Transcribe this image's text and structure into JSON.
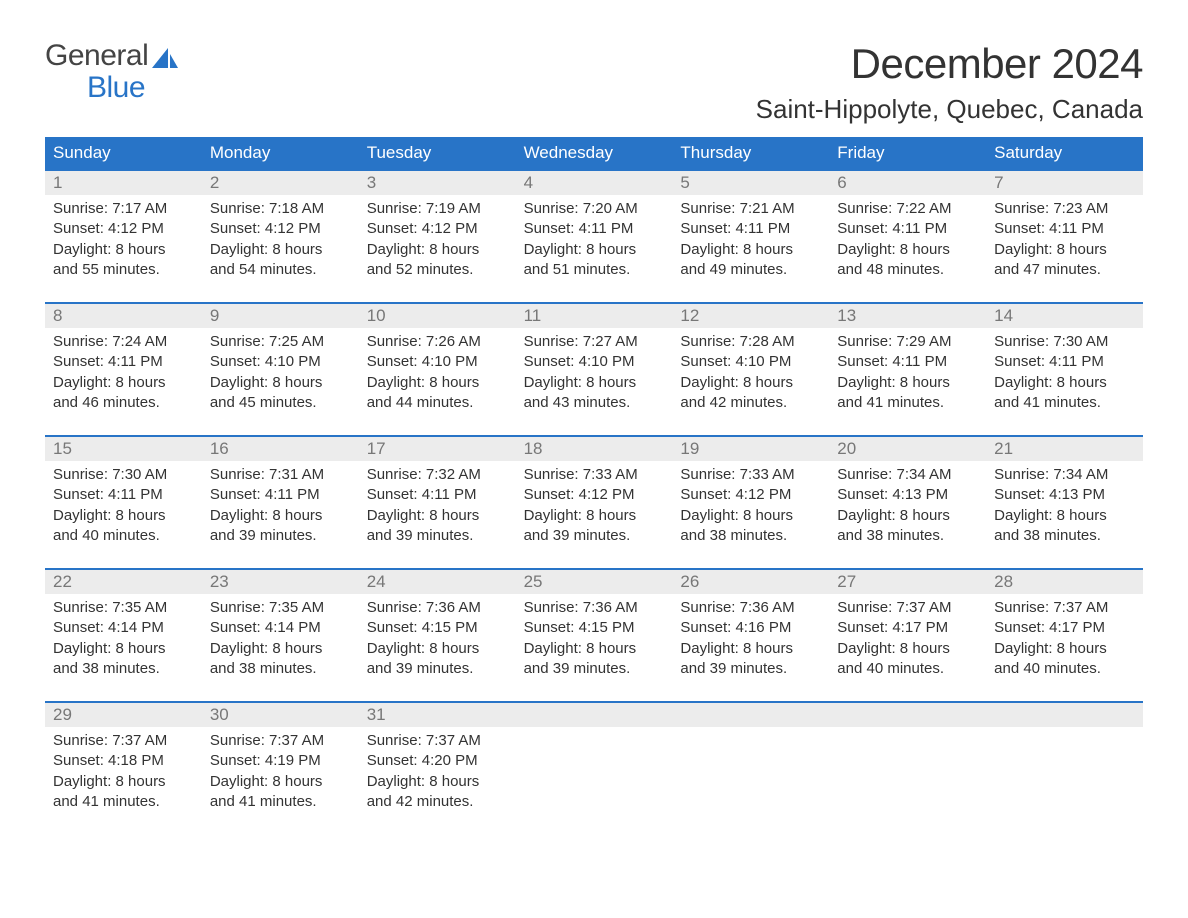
{
  "logo": {
    "word1": "General",
    "word2": "Blue",
    "accent_color": "#2874c7"
  },
  "title": "December 2024",
  "location": "Saint-Hippolyte, Quebec, Canada",
  "header_bg": "#2874c7",
  "band_bg": "#ececec",
  "day_headers": [
    "Sunday",
    "Monday",
    "Tuesday",
    "Wednesday",
    "Thursday",
    "Friday",
    "Saturday"
  ],
  "weeks": [
    [
      {
        "n": "1",
        "sunrise": "7:17 AM",
        "sunset": "4:12 PM",
        "dl1": "Daylight: 8 hours",
        "dl2": "and 55 minutes."
      },
      {
        "n": "2",
        "sunrise": "7:18 AM",
        "sunset": "4:12 PM",
        "dl1": "Daylight: 8 hours",
        "dl2": "and 54 minutes."
      },
      {
        "n": "3",
        "sunrise": "7:19 AM",
        "sunset": "4:12 PM",
        "dl1": "Daylight: 8 hours",
        "dl2": "and 52 minutes."
      },
      {
        "n": "4",
        "sunrise": "7:20 AM",
        "sunset": "4:11 PM",
        "dl1": "Daylight: 8 hours",
        "dl2": "and 51 minutes."
      },
      {
        "n": "5",
        "sunrise": "7:21 AM",
        "sunset": "4:11 PM",
        "dl1": "Daylight: 8 hours",
        "dl2": "and 49 minutes."
      },
      {
        "n": "6",
        "sunrise": "7:22 AM",
        "sunset": "4:11 PM",
        "dl1": "Daylight: 8 hours",
        "dl2": "and 48 minutes."
      },
      {
        "n": "7",
        "sunrise": "7:23 AM",
        "sunset": "4:11 PM",
        "dl1": "Daylight: 8 hours",
        "dl2": "and 47 minutes."
      }
    ],
    [
      {
        "n": "8",
        "sunrise": "7:24 AM",
        "sunset": "4:11 PM",
        "dl1": "Daylight: 8 hours",
        "dl2": "and 46 minutes."
      },
      {
        "n": "9",
        "sunrise": "7:25 AM",
        "sunset": "4:10 PM",
        "dl1": "Daylight: 8 hours",
        "dl2": "and 45 minutes."
      },
      {
        "n": "10",
        "sunrise": "7:26 AM",
        "sunset": "4:10 PM",
        "dl1": "Daylight: 8 hours",
        "dl2": "and 44 minutes."
      },
      {
        "n": "11",
        "sunrise": "7:27 AM",
        "sunset": "4:10 PM",
        "dl1": "Daylight: 8 hours",
        "dl2": "and 43 minutes."
      },
      {
        "n": "12",
        "sunrise": "7:28 AM",
        "sunset": "4:10 PM",
        "dl1": "Daylight: 8 hours",
        "dl2": "and 42 minutes."
      },
      {
        "n": "13",
        "sunrise": "7:29 AM",
        "sunset": "4:11 PM",
        "dl1": "Daylight: 8 hours",
        "dl2": "and 41 minutes."
      },
      {
        "n": "14",
        "sunrise": "7:30 AM",
        "sunset": "4:11 PM",
        "dl1": "Daylight: 8 hours",
        "dl2": "and 41 minutes."
      }
    ],
    [
      {
        "n": "15",
        "sunrise": "7:30 AM",
        "sunset": "4:11 PM",
        "dl1": "Daylight: 8 hours",
        "dl2": "and 40 minutes."
      },
      {
        "n": "16",
        "sunrise": "7:31 AM",
        "sunset": "4:11 PM",
        "dl1": "Daylight: 8 hours",
        "dl2": "and 39 minutes."
      },
      {
        "n": "17",
        "sunrise": "7:32 AM",
        "sunset": "4:11 PM",
        "dl1": "Daylight: 8 hours",
        "dl2": "and 39 minutes."
      },
      {
        "n": "18",
        "sunrise": "7:33 AM",
        "sunset": "4:12 PM",
        "dl1": "Daylight: 8 hours",
        "dl2": "and 39 minutes."
      },
      {
        "n": "19",
        "sunrise": "7:33 AM",
        "sunset": "4:12 PM",
        "dl1": "Daylight: 8 hours",
        "dl2": "and 38 minutes."
      },
      {
        "n": "20",
        "sunrise": "7:34 AM",
        "sunset": "4:13 PM",
        "dl1": "Daylight: 8 hours",
        "dl2": "and 38 minutes."
      },
      {
        "n": "21",
        "sunrise": "7:34 AM",
        "sunset": "4:13 PM",
        "dl1": "Daylight: 8 hours",
        "dl2": "and 38 minutes."
      }
    ],
    [
      {
        "n": "22",
        "sunrise": "7:35 AM",
        "sunset": "4:14 PM",
        "dl1": "Daylight: 8 hours",
        "dl2": "and 38 minutes."
      },
      {
        "n": "23",
        "sunrise": "7:35 AM",
        "sunset": "4:14 PM",
        "dl1": "Daylight: 8 hours",
        "dl2": "and 38 minutes."
      },
      {
        "n": "24",
        "sunrise": "7:36 AM",
        "sunset": "4:15 PM",
        "dl1": "Daylight: 8 hours",
        "dl2": "and 39 minutes."
      },
      {
        "n": "25",
        "sunrise": "7:36 AM",
        "sunset": "4:15 PM",
        "dl1": "Daylight: 8 hours",
        "dl2": "and 39 minutes."
      },
      {
        "n": "26",
        "sunrise": "7:36 AM",
        "sunset": "4:16 PM",
        "dl1": "Daylight: 8 hours",
        "dl2": "and 39 minutes."
      },
      {
        "n": "27",
        "sunrise": "7:37 AM",
        "sunset": "4:17 PM",
        "dl1": "Daylight: 8 hours",
        "dl2": "and 40 minutes."
      },
      {
        "n": "28",
        "sunrise": "7:37 AM",
        "sunset": "4:17 PM",
        "dl1": "Daylight: 8 hours",
        "dl2": "and 40 minutes."
      }
    ],
    [
      {
        "n": "29",
        "sunrise": "7:37 AM",
        "sunset": "4:18 PM",
        "dl1": "Daylight: 8 hours",
        "dl2": "and 41 minutes."
      },
      {
        "n": "30",
        "sunrise": "7:37 AM",
        "sunset": "4:19 PM",
        "dl1": "Daylight: 8 hours",
        "dl2": "and 41 minutes."
      },
      {
        "n": "31",
        "sunrise": "7:37 AM",
        "sunset": "4:20 PM",
        "dl1": "Daylight: 8 hours",
        "dl2": "and 42 minutes."
      },
      null,
      null,
      null,
      null
    ]
  ]
}
